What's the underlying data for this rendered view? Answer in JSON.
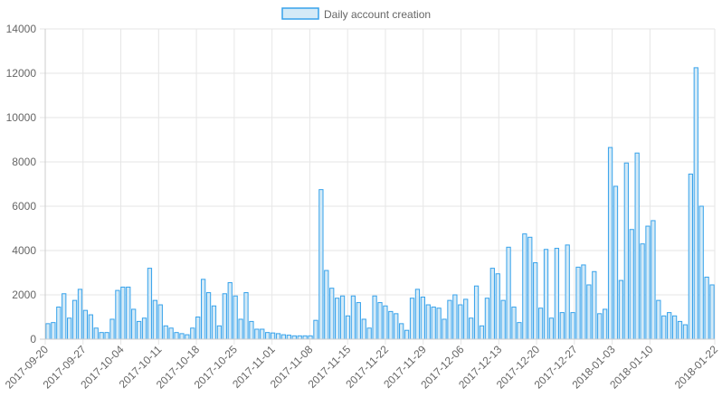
{
  "chart_data": {
    "type": "bar",
    "legend": {
      "label": "Daily account creation",
      "position": "top-center"
    },
    "colors": {
      "bar_fill": "#d4eaf7",
      "bar_stroke": "#36a2eb",
      "grid": "#e6e6e6",
      "text": "#666666"
    },
    "grid": true,
    "ylim": [
      0,
      14000
    ],
    "yticks": [
      0,
      2000,
      4000,
      6000,
      8000,
      10000,
      12000,
      14000
    ],
    "x_start": "2017-09-20",
    "x_end": "2018-01-22",
    "xticks": [
      "2017-09-20",
      "2017-09-27",
      "2017-10-04",
      "2017-10-11",
      "2017-10-18",
      "2017-10-25",
      "2017-11-01",
      "2017-11-08",
      "2017-11-15",
      "2017-11-22",
      "2017-11-29",
      "2017-12-06",
      "2017-12-13",
      "2017-12-20",
      "2017-12-27",
      "2018-01-03",
      "2018-01-10",
      "2018-01-22"
    ],
    "values": [
      700,
      750,
      1450,
      2050,
      950,
      1750,
      2250,
      1300,
      1100,
      500,
      300,
      300,
      900,
      2200,
      2350,
      2350,
      1350,
      800,
      950,
      3200,
      1750,
      1550,
      600,
      500,
      300,
      250,
      200,
      500,
      1000,
      2700,
      2100,
      1500,
      600,
      2050,
      2550,
      1950,
      900,
      2100,
      800,
      450,
      450,
      300,
      280,
      250,
      200,
      180,
      150,
      150,
      150,
      150,
      850,
      6750,
      3100,
      2300,
      1850,
      1950,
      1050,
      1950,
      1650,
      900,
      500,
      1950,
      1650,
      1500,
      1250,
      1150,
      700,
      400,
      1850,
      2250,
      1900,
      1550,
      1450,
      1400,
      900,
      1750,
      2000,
      1550,
      1800,
      950,
      2400,
      600,
      1850,
      3200,
      2950,
      1750,
      4150,
      1450,
      750,
      4750,
      4600,
      3450,
      1400,
      4050,
      950,
      4100,
      1200,
      4250,
      1200,
      3250,
      3350,
      2450,
      3050,
      1150,
      1350,
      8650,
      6900,
      2650,
      7950,
      4950,
      8400,
      4300,
      5100,
      5350,
      1750,
      1050,
      1200,
      1050,
      800,
      650,
      7450,
      12250,
      6000,
      2800,
      2450
    ]
  }
}
